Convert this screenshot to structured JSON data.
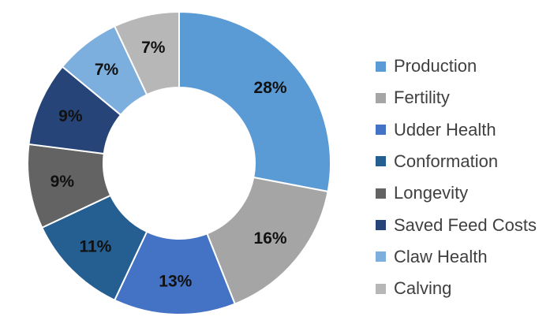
{
  "chart_data": {
    "type": "pie",
    "variant": "donut",
    "categories": [
      "Production",
      "Fertility",
      "Udder Health",
      "Conformation",
      "Longevity",
      "Saved Feed Costs",
      "Claw Health",
      "Calving"
    ],
    "values": [
      28,
      16,
      13,
      11,
      9,
      9,
      7,
      7
    ],
    "data_labels": [
      "28%",
      "16%",
      "13%",
      "11%",
      "9%",
      "9%",
      "7%",
      "7%"
    ],
    "colors": [
      "#5B9BD5",
      "#A5A5A5",
      "#4472C4",
      "#255E91",
      "#636363",
      "#264478",
      "#7CAFDD",
      "#B7B7B7"
    ],
    "legend_position": "right",
    "start_angle": "top",
    "direction": "clockwise"
  }
}
